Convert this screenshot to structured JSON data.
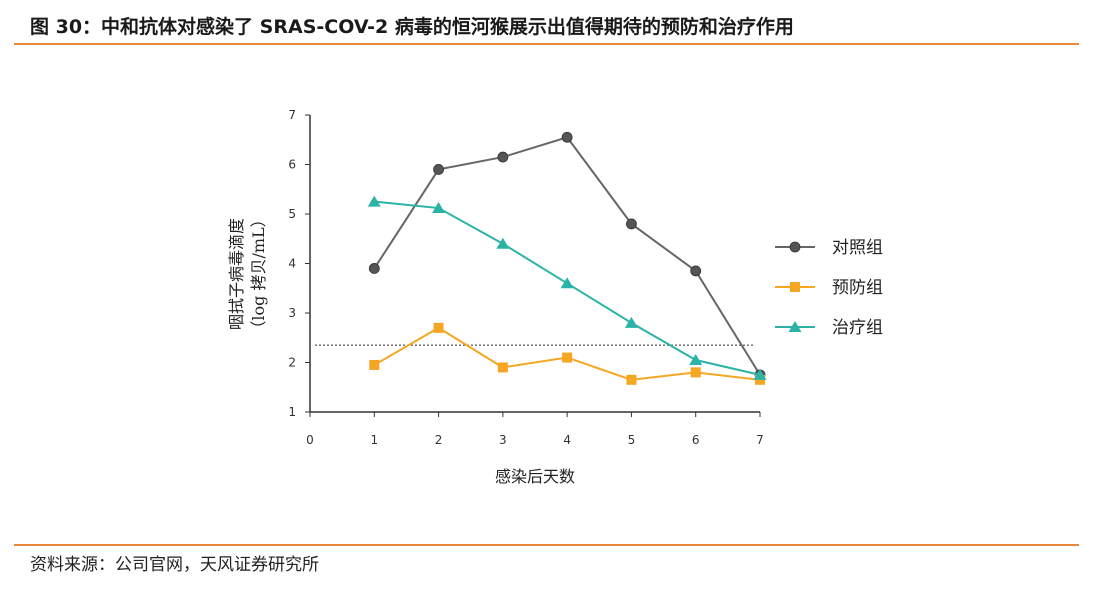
{
  "header": {
    "title": "图 30：中和抗体对感染了 SRAS-COV-2 病毒的恒河猴展示出值得期待的预防和治疗作用"
  },
  "footer": {
    "source": "资料来源：公司官网，天风证券研究所"
  },
  "colors": {
    "accent_rule": "#e8883a",
    "control": "#555555",
    "prevention": "#f5a623",
    "treatment": "#2ab3a6"
  },
  "chart_data": {
    "type": "line",
    "xlabel": "感染后天数",
    "ylabel_line1": "咽拭子病毒滴度",
    "ylabel_line2": "（log 拷贝/mL）",
    "x_ticks": [
      "0",
      "1",
      "2",
      "3",
      "4",
      "5",
      "6",
      "7"
    ],
    "y_ticks": [
      "1",
      "2",
      "3",
      "4",
      "5",
      "6",
      "7"
    ],
    "xlim": [
      0,
      7
    ],
    "ylim": [
      1,
      7
    ],
    "threshold": 2.35,
    "legend_position": "right",
    "series": [
      {
        "name": "对照组",
        "marker": "circle",
        "color": "#555555",
        "x": [
          1,
          2,
          3,
          4,
          5,
          6,
          7
        ],
        "y": [
          3.9,
          5.9,
          6.15,
          6.55,
          4.8,
          3.85,
          1.75
        ]
      },
      {
        "name": "预防组",
        "marker": "square",
        "color": "#f5a623",
        "x": [
          1,
          2,
          3,
          4,
          5,
          6,
          7
        ],
        "y": [
          1.95,
          2.7,
          1.9,
          2.1,
          1.65,
          1.8,
          1.65
        ]
      },
      {
        "name": "治疗组",
        "marker": "triangle",
        "color": "#2ab3a6",
        "x": [
          1,
          2,
          3,
          4,
          5,
          6,
          7
        ],
        "y": [
          5.25,
          5.12,
          4.4,
          3.6,
          2.8,
          2.05,
          1.75
        ]
      }
    ]
  }
}
